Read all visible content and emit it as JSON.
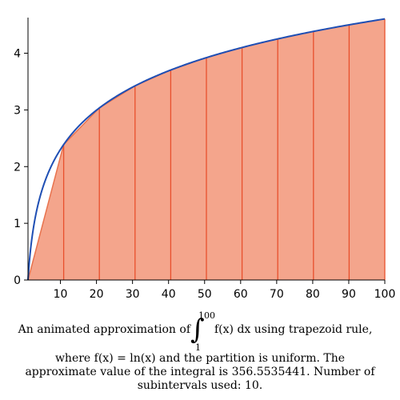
{
  "chart_data": {
    "type": "area",
    "function_expression": "ln(x)",
    "x": [
      1,
      10.9,
      20.8,
      30.7,
      40.6,
      50.5,
      60.4,
      70.3,
      80.2,
      90.1,
      100
    ],
    "y": [
      0,
      2.389,
      3.035,
      3.424,
      3.704,
      3.922,
      4.101,
      4.253,
      4.385,
      4.501,
      4.605
    ],
    "xlim": [
      1,
      100
    ],
    "ylim": [
      0,
      4.6
    ],
    "xticks": [
      10,
      20,
      30,
      40,
      50,
      60,
      70,
      80,
      90,
      100
    ],
    "yticks": [
      0,
      1,
      2,
      3,
      4
    ],
    "grid": false,
    "colors": {
      "fill": "#f4a58c",
      "partition": "#e8502d",
      "curve": "#1f4fb4",
      "edge": "#e8734e"
    }
  },
  "caption": {
    "part1": "An animated approximation of",
    "integral_symbol": "∫",
    "upper_limit": "100",
    "lower_limit": "1",
    "integrand": "f(x) dx using trapezoid rule,",
    "line2": "where f(x) = ln(x) and the partition is uniform.  The",
    "line3": "approximate value of the integral is 356.5535441.  Number of",
    "line4": "subintervals used: 10."
  }
}
